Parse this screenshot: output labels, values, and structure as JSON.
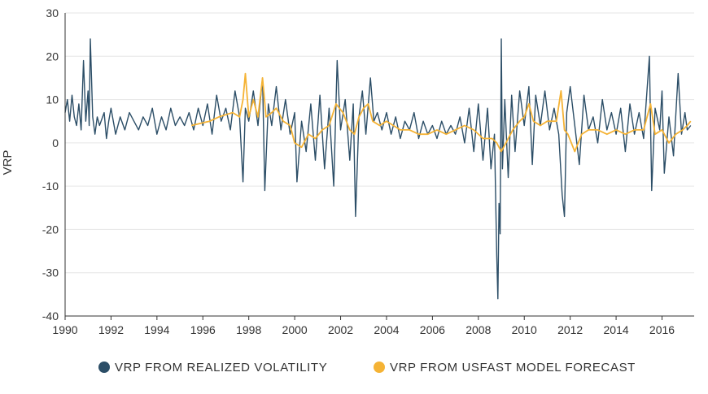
{
  "chart_data": {
    "type": "line",
    "title": "",
    "xlabel": "",
    "ylabel": "VRP",
    "xlim": [
      1990,
      2017.4
    ],
    "ylim": [
      -40,
      30
    ],
    "xticks": [
      1990,
      1992,
      1994,
      1996,
      1998,
      2000,
      2002,
      2004,
      2006,
      2008,
      2010,
      2012,
      2014,
      2016
    ],
    "yticks": [
      -40,
      -30,
      -20,
      -10,
      0,
      10,
      20,
      30
    ],
    "grid": "horizontal",
    "legend_position": "bottom",
    "series": [
      {
        "name": "VRP FROM REALIZED VOLATILITY",
        "color": "#2c4e67",
        "points": [
          [
            1990.0,
            7
          ],
          [
            1990.1,
            10
          ],
          [
            1990.2,
            5
          ],
          [
            1990.3,
            11
          ],
          [
            1990.4,
            6
          ],
          [
            1990.5,
            4
          ],
          [
            1990.6,
            9
          ],
          [
            1990.7,
            3
          ],
          [
            1990.8,
            19
          ],
          [
            1990.9,
            5
          ],
          [
            1991.0,
            12
          ],
          [
            1991.05,
            4
          ],
          [
            1991.1,
            24
          ],
          [
            1991.2,
            6
          ],
          [
            1991.3,
            2
          ],
          [
            1991.4,
            6
          ],
          [
            1991.5,
            4
          ],
          [
            1991.7,
            7
          ],
          [
            1991.8,
            1
          ],
          [
            1991.9,
            5
          ],
          [
            1992.0,
            8
          ],
          [
            1992.2,
            2
          ],
          [
            1992.4,
            6
          ],
          [
            1992.6,
            3
          ],
          [
            1992.8,
            7
          ],
          [
            1993.0,
            5
          ],
          [
            1993.2,
            3
          ],
          [
            1993.4,
            6
          ],
          [
            1993.6,
            4
          ],
          [
            1993.8,
            8
          ],
          [
            1994.0,
            2
          ],
          [
            1994.2,
            6
          ],
          [
            1994.4,
            3
          ],
          [
            1994.6,
            8
          ],
          [
            1994.8,
            4
          ],
          [
            1995.0,
            6
          ],
          [
            1995.2,
            4
          ],
          [
            1995.4,
            7
          ],
          [
            1995.6,
            3
          ],
          [
            1995.8,
            8
          ],
          [
            1996.0,
            4
          ],
          [
            1996.2,
            9
          ],
          [
            1996.4,
            2
          ],
          [
            1996.6,
            11
          ],
          [
            1996.8,
            5
          ],
          [
            1997.0,
            8
          ],
          [
            1997.2,
            3
          ],
          [
            1997.4,
            12
          ],
          [
            1997.6,
            6
          ],
          [
            1997.75,
            -9
          ],
          [
            1997.85,
            8
          ],
          [
            1998.0,
            5
          ],
          [
            1998.2,
            12
          ],
          [
            1998.4,
            4
          ],
          [
            1998.6,
            15
          ],
          [
            1998.7,
            -11
          ],
          [
            1998.85,
            9
          ],
          [
            1999.0,
            4
          ],
          [
            1999.2,
            13
          ],
          [
            1999.4,
            3
          ],
          [
            1999.6,
            10
          ],
          [
            1999.8,
            2
          ],
          [
            2000.0,
            7
          ],
          [
            2000.1,
            -9
          ],
          [
            2000.3,
            5
          ],
          [
            2000.5,
            -2
          ],
          [
            2000.7,
            9
          ],
          [
            2000.9,
            -4
          ],
          [
            2001.1,
            11
          ],
          [
            2001.3,
            -6
          ],
          [
            2001.5,
            8
          ],
          [
            2001.7,
            -10
          ],
          [
            2001.85,
            19
          ],
          [
            2002.0,
            3
          ],
          [
            2002.2,
            10
          ],
          [
            2002.4,
            -4
          ],
          [
            2002.55,
            9
          ],
          [
            2002.65,
            -17
          ],
          [
            2002.8,
            6
          ],
          [
            2002.95,
            12
          ],
          [
            2003.1,
            2
          ],
          [
            2003.3,
            15
          ],
          [
            2003.45,
            5
          ],
          [
            2003.6,
            7
          ],
          [
            2003.8,
            3
          ],
          [
            2004.0,
            7
          ],
          [
            2004.2,
            2
          ],
          [
            2004.4,
            6
          ],
          [
            2004.6,
            1
          ],
          [
            2004.8,
            5
          ],
          [
            2005.0,
            3
          ],
          [
            2005.2,
            7
          ],
          [
            2005.4,
            1
          ],
          [
            2005.6,
            5
          ],
          [
            2005.8,
            2
          ],
          [
            2006.0,
            4
          ],
          [
            2006.2,
            1
          ],
          [
            2006.4,
            5
          ],
          [
            2006.6,
            2
          ],
          [
            2006.8,
            4
          ],
          [
            2007.0,
            2
          ],
          [
            2007.2,
            6
          ],
          [
            2007.4,
            0
          ],
          [
            2007.6,
            8
          ],
          [
            2007.8,
            -2
          ],
          [
            2008.0,
            9
          ],
          [
            2008.2,
            -4
          ],
          [
            2008.4,
            8
          ],
          [
            2008.55,
            -6
          ],
          [
            2008.7,
            2
          ],
          [
            2008.8,
            -26
          ],
          [
            2008.85,
            -36
          ],
          [
            2008.9,
            -14
          ],
          [
            2008.95,
            -21
          ],
          [
            2009.0,
            24
          ],
          [
            2009.05,
            -6
          ],
          [
            2009.15,
            10
          ],
          [
            2009.3,
            -8
          ],
          [
            2009.45,
            11
          ],
          [
            2009.6,
            -2
          ],
          [
            2009.8,
            12
          ],
          [
            2010.0,
            4
          ],
          [
            2010.2,
            13
          ],
          [
            2010.35,
            -5
          ],
          [
            2010.5,
            11
          ],
          [
            2010.7,
            4
          ],
          [
            2010.9,
            12
          ],
          [
            2011.1,
            3
          ],
          [
            2011.3,
            8
          ],
          [
            2011.5,
            2
          ],
          [
            2011.65,
            -12
          ],
          [
            2011.75,
            -17
          ],
          [
            2011.85,
            7
          ],
          [
            2012.0,
            13
          ],
          [
            2012.2,
            4
          ],
          [
            2012.4,
            -5
          ],
          [
            2012.6,
            11
          ],
          [
            2012.8,
            3
          ],
          [
            2013.0,
            6
          ],
          [
            2013.2,
            0
          ],
          [
            2013.4,
            10
          ],
          [
            2013.6,
            3
          ],
          [
            2013.8,
            7
          ],
          [
            2014.0,
            2
          ],
          [
            2014.2,
            8
          ],
          [
            2014.4,
            -2
          ],
          [
            2014.6,
            9
          ],
          [
            2014.8,
            2
          ],
          [
            2015.0,
            7
          ],
          [
            2015.2,
            1
          ],
          [
            2015.45,
            20
          ],
          [
            2015.55,
            -11
          ],
          [
            2015.7,
            8
          ],
          [
            2015.9,
            3
          ],
          [
            2016.0,
            12
          ],
          [
            2016.1,
            -7
          ],
          [
            2016.3,
            6
          ],
          [
            2016.5,
            -3
          ],
          [
            2016.7,
            16
          ],
          [
            2016.85,
            2
          ],
          [
            2017.0,
            7
          ],
          [
            2017.1,
            3
          ],
          [
            2017.25,
            4
          ]
        ]
      },
      {
        "name": "VRP FROM USFAST MODEL FORECAST",
        "color": "#f5b335",
        "points": [
          [
            1995.5,
            4
          ],
          [
            1995.9,
            4.5
          ],
          [
            1996.3,
            5
          ],
          [
            1996.7,
            6
          ],
          [
            1997.0,
            6.5
          ],
          [
            1997.3,
            7
          ],
          [
            1997.6,
            6
          ],
          [
            1997.75,
            10
          ],
          [
            1997.85,
            16
          ],
          [
            1998.0,
            6
          ],
          [
            1998.2,
            10
          ],
          [
            1998.4,
            6
          ],
          [
            1998.6,
            15
          ],
          [
            1998.75,
            6
          ],
          [
            1999.0,
            7
          ],
          [
            1999.2,
            8
          ],
          [
            1999.5,
            5
          ],
          [
            1999.8,
            4
          ],
          [
            2000.0,
            0
          ],
          [
            2000.3,
            -1
          ],
          [
            2000.6,
            2
          ],
          [
            2000.9,
            1
          ],
          [
            2001.2,
            3
          ],
          [
            2001.5,
            4
          ],
          [
            2001.8,
            9
          ],
          [
            2002.1,
            7
          ],
          [
            2002.4,
            3
          ],
          [
            2002.6,
            2
          ],
          [
            2002.8,
            6
          ],
          [
            2003.0,
            8
          ],
          [
            2003.2,
            9
          ],
          [
            2003.4,
            5
          ],
          [
            2003.7,
            4
          ],
          [
            2004.0,
            5
          ],
          [
            2004.3,
            4
          ],
          [
            2004.6,
            3
          ],
          [
            2005.0,
            3
          ],
          [
            2005.4,
            2
          ],
          [
            2005.8,
            2
          ],
          [
            2006.2,
            3
          ],
          [
            2006.6,
            2
          ],
          [
            2007.0,
            3
          ],
          [
            2007.4,
            4
          ],
          [
            2007.8,
            3
          ],
          [
            2008.2,
            1
          ],
          [
            2008.6,
            1
          ],
          [
            2008.8,
            0
          ],
          [
            2009.0,
            -2
          ],
          [
            2009.2,
            0
          ],
          [
            2009.5,
            3
          ],
          [
            2009.8,
            5
          ],
          [
            2010.0,
            6
          ],
          [
            2010.2,
            9
          ],
          [
            2010.4,
            5
          ],
          [
            2010.7,
            4
          ],
          [
            2011.0,
            5
          ],
          [
            2011.4,
            5
          ],
          [
            2011.6,
            12
          ],
          [
            2011.75,
            3
          ],
          [
            2011.9,
            2
          ],
          [
            2012.2,
            -2
          ],
          [
            2012.5,
            2
          ],
          [
            2012.8,
            3
          ],
          [
            2013.2,
            3
          ],
          [
            2013.6,
            2
          ],
          [
            2014.0,
            3
          ],
          [
            2014.4,
            2
          ],
          [
            2014.8,
            3
          ],
          [
            2015.2,
            3
          ],
          [
            2015.5,
            9
          ],
          [
            2015.7,
            2
          ],
          [
            2016.0,
            3
          ],
          [
            2016.3,
            0
          ],
          [
            2016.6,
            2
          ],
          [
            2016.9,
            3
          ],
          [
            2017.1,
            4
          ],
          [
            2017.25,
            5
          ]
        ]
      }
    ]
  },
  "legend": {
    "items": [
      {
        "label": "VRP FROM REALIZED VOLATILITY",
        "color": "#2c4e67"
      },
      {
        "label": "VRP FROM USFAST MODEL FORECAST",
        "color": "#f5b335"
      }
    ]
  },
  "colors": {
    "grid": "#e6e6e6",
    "axis": "#333333"
  }
}
